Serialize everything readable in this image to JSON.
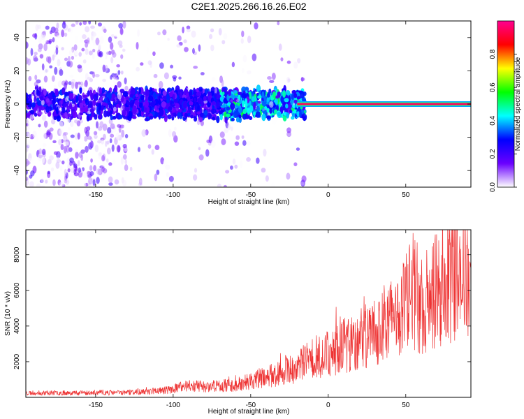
{
  "figure_title": "C2E1.2025.266.16.26.E02",
  "chart_data": [
    {
      "type": "heatmap",
      "title": "",
      "xlabel": "Height of straight line (km)",
      "ylabel": "Frequency (Hz)",
      "xlim": [
        -195,
        92
      ],
      "ylim": [
        -50,
        50
      ],
      "xticks": [
        -150,
        -100,
        -50,
        0,
        50
      ],
      "yticks": [
        -40,
        -20,
        0,
        20,
        40
      ],
      "grid": false,
      "colorbar": {
        "label": "Normalized spectral amplitude",
        "range": [
          0,
          1
        ],
        "ticks": [
          0.0,
          0.2,
          0.4,
          0.6,
          0.8
        ],
        "colormap": [
          "#ffffff",
          "#6a00ff",
          "#0000ff",
          "#00ffff",
          "#00ff00",
          "#ffff00",
          "#ff0000",
          "#ff0090"
        ]
      },
      "features": {
        "steady_line_frequency_hz": 0,
        "steady_line_from_km": -20,
        "steady_line_amplitude": 0.95,
        "noise_band_halfwidth_hz": 50,
        "noise_dense_until_km": -130,
        "noise_sparse_until_km": -50
      }
    },
    {
      "type": "line",
      "title": "",
      "xlabel": "Height of straight line (km)",
      "ylabel": "SNR (10 * v/v)",
      "xlim": [
        -195,
        92
      ],
      "ylim": [
        0,
        9400
      ],
      "xticks": [
        -150,
        -100,
        -50,
        0,
        50
      ],
      "yticks": [
        2000,
        4000,
        6000,
        8000
      ],
      "grid": false,
      "color": "#ee3333",
      "series": [
        {
          "x": [
            -195,
            -180,
            -160,
            -140,
            -120,
            -100,
            -90,
            -80,
            -70,
            -60,
            -50,
            -40,
            -30,
            -20,
            -10,
            0,
            10,
            20,
            30,
            40,
            50,
            55,
            60,
            70,
            80,
            85,
            88,
            92
          ],
          "y": [
            250,
            250,
            260,
            260,
            300,
            450,
            700,
            600,
            650,
            700,
            900,
            1150,
            1400,
            1700,
            2200,
            2500,
            2900,
            3200,
            3700,
            4300,
            5300,
            6000,
            5200,
            6000,
            6800,
            7400,
            8000,
            5000
          ]
        }
      ]
    }
  ]
}
